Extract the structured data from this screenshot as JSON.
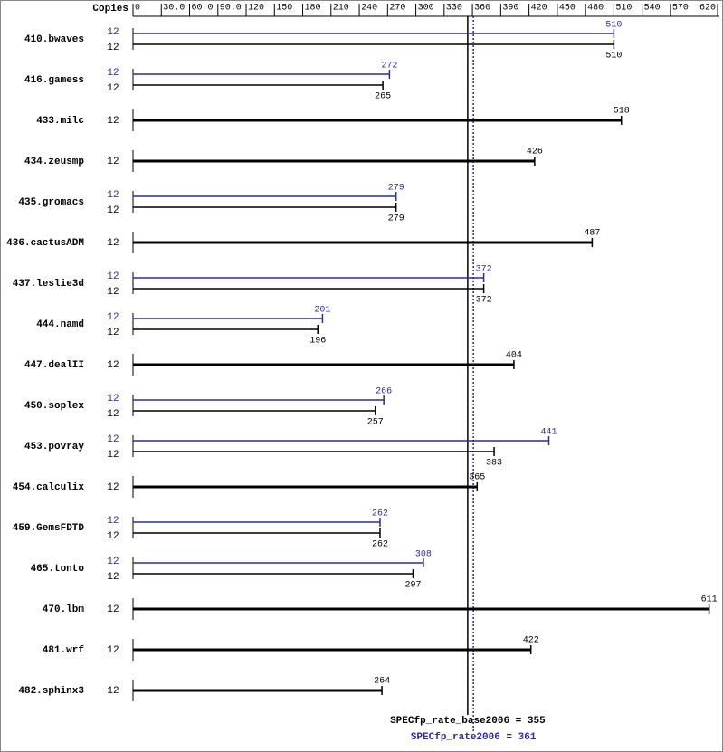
{
  "chart_data": {
    "type": "bar",
    "copies_label": "Copies",
    "categories": [
      "410.bwaves",
      "416.gamess",
      "433.milc",
      "434.zeusmp",
      "435.gromacs",
      "436.cactusADM",
      "437.leslie3d",
      "444.namd",
      "447.dealII",
      "450.soplex",
      "453.povray",
      "454.calculix",
      "459.GemsFDTD",
      "465.tonto",
      "470.lbm",
      "481.wrf",
      "482.sphinx3"
    ],
    "series": [
      {
        "color": "#000000",
        "copies": [
          12,
          12,
          12,
          12,
          12,
          12,
          12,
          12,
          12,
          12,
          12,
          12,
          12,
          12,
          12,
          12,
          12
        ],
        "values": [
          510,
          265,
          518,
          426,
          279,
          487,
          372,
          196,
          404,
          257,
          383,
          365,
          262,
          297,
          611,
          422,
          264
        ]
      },
      {
        "color": "#2b2b9b",
        "copies": [
          12,
          12,
          null,
          null,
          12,
          null,
          12,
          12,
          null,
          12,
          12,
          null,
          12,
          12,
          null,
          null,
          null
        ],
        "values": [
          510,
          272,
          null,
          null,
          279,
          null,
          372,
          201,
          null,
          266,
          441,
          null,
          262,
          308,
          null,
          null,
          null
        ]
      }
    ],
    "xlim": [
      0,
      620
    ],
    "xticks": [
      0,
      {
        "value": 30,
        "label": "30.0"
      },
      {
        "value": 60,
        "label": "60.0"
      },
      {
        "value": 90,
        "label": "90.0"
      },
      120,
      150,
      180,
      210,
      240,
      270,
      300,
      330,
      360,
      390,
      420,
      450,
      480,
      510,
      540,
      570,
      620
    ],
    "reference_lines": [
      {
        "label": "SPECfp_rate_base2006 = 355",
        "value": 355,
        "color": "#000000"
      },
      {
        "label": "SPECfp_rate2006 = 361",
        "value": 361,
        "color": "#2b2b9b"
      }
    ]
  }
}
